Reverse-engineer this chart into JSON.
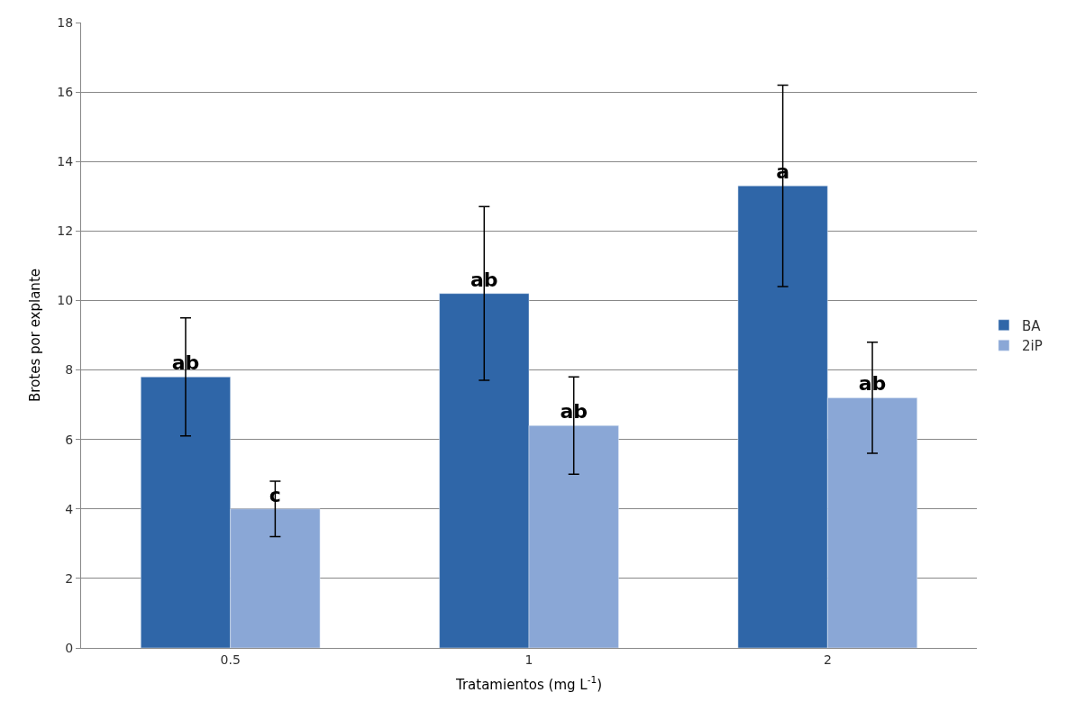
{
  "chart_data": {
    "type": "bar",
    "xlabel": "Tratamientos (mg L$^{-1}$)",
    "ylabel": "Brotes por explante",
    "categories": [
      "0.5",
      "1",
      "2"
    ],
    "series": [
      {
        "name": "BA",
        "color": "#2f66a8",
        "values": [
          7.8,
          10.2,
          13.3
        ],
        "errors": [
          1.7,
          2.5,
          2.9
        ],
        "value_labels": [
          "ab",
          "ab",
          "a"
        ]
      },
      {
        "name": "2iP",
        "color": "#8aa7d6",
        "values": [
          4.0,
          6.4,
          7.2
        ],
        "errors": [
          0.8,
          1.4,
          1.6
        ],
        "value_labels": [
          "c",
          "ab",
          "ab"
        ]
      }
    ],
    "ylim": [
      0,
      18
    ],
    "yticks": [
      0,
      2,
      4,
      6,
      8,
      10,
      12,
      14,
      16,
      18
    ],
    "grid": "y",
    "legend": "right"
  }
}
